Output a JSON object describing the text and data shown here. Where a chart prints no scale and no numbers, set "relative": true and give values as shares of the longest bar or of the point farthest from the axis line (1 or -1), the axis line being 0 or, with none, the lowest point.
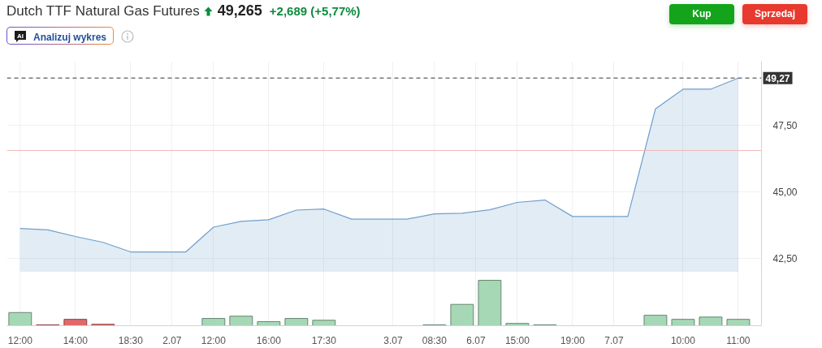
{
  "chart_data": [
    {
      "type": "area",
      "title": "Dutch TTF Natural Gas Futures",
      "subtitle": "49,265",
      "annotations": [
        "+2,689 (+5,77%)",
        "AI",
        "Analizuj wykres",
        "Kup",
        "Sprzedaj"
      ],
      "categories": [
        null,
        null,
        null,
        null,
        null,
        null,
        null,
        null,
        null,
        null,
        null,
        null,
        null,
        null,
        null,
        null,
        null,
        null,
        null,
        null,
        null,
        null,
        null,
        null,
        null,
        null,
        null
      ],
      "series": [
        {
          "color": "#6f9fcb",
          "values": [
            43.62,
            43.57,
            43.32,
            43.1,
            42.74,
            42.74,
            42.74,
            43.67,
            43.89,
            43.95,
            44.31,
            44.35,
            43.97,
            43.97,
            43.97,
            44.17,
            44.19,
            44.32,
            44.6,
            44.69,
            44.07,
            44.07,
            44.07,
            48.11,
            48.85,
            48.85,
            49.27
          ]
        }
      ],
      "ylim": [
        41.98,
        49.9
      ],
      "yticks": [
        {
          "value": 42.5,
          "label": "42,50"
        },
        {
          "value": 45,
          "label": "45,00"
        },
        {
          "value": 47.5,
          "label": "47,50"
        }
      ],
      "ref_lines": [
        {
          "axis": "y",
          "value": 49.27,
          "label": "49,27",
          "color": "#333333",
          "line_style": "dashed"
        },
        {
          "axis": "y",
          "value": 46.55,
          "color": "#f2b8b8"
        }
      ],
      "grid": true,
      "tick_labels": "y"
    },
    {
      "type": "bar",
      "relative": true,
      "categories": [
        "12:00",
        null,
        "14:00",
        null,
        "18:30",
        null,
        null,
        "12:00",
        null,
        "16:00",
        null,
        "17:30",
        null,
        null,
        null,
        "08:30",
        null,
        null,
        "15:00",
        null,
        "19:00",
        null,
        null,
        null,
        "10:00",
        null,
        "11:00"
      ],
      "values": [
        0.29,
        0.02,
        0.14,
        0.03,
        null,
        null,
        null,
        0.16,
        0.21,
        0.09,
        0.16,
        0.12,
        null,
        null,
        null,
        0.02,
        0.47,
        1,
        0.05,
        0.02,
        null,
        null,
        null,
        0.23,
        0.14,
        0.19,
        0.14
      ],
      "colors": [
        "#a6d8b6",
        "#e06a6a",
        "#e06a6a",
        "#e06a6a",
        null,
        null,
        null,
        "#a6d8b6",
        "#a6d8b6",
        "#a6d8b6",
        "#a6d8b6",
        "#a6d8b6",
        null,
        null,
        null,
        "#a6d8b6",
        "#a6d8b6",
        "#a6d8b6",
        "#a6d8b6",
        "#a6d8b6",
        null,
        null,
        null,
        "#a6d8b6",
        "#a6d8b6",
        "#a6d8b6",
        "#a6d8b6"
      ],
      "annotations": [
        "2.07",
        "3.07",
        "6.07",
        "7.07"
      ],
      "grid": "x",
      "tick_labels": "x"
    }
  ]
}
